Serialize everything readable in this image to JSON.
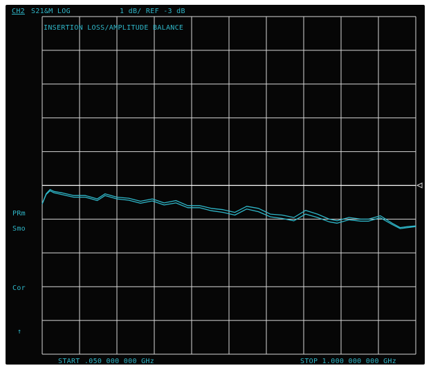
{
  "header": {
    "channel": "CH2",
    "measurement": "S21&M LOG",
    "scale_ref": "1 dB/ REF -3 dB"
  },
  "annotation": "INSERTION LOSS/AMPLITUDE BALANCE",
  "side_labels": {
    "prm": "PRm",
    "smo": "Smo",
    "cor": "Cor",
    "arrow": "↑"
  },
  "footer": {
    "start": "START .050 000 000 GHz",
    "stop": "STOP 1.000 000 000 GHz"
  },
  "colors": {
    "background": "#060606",
    "grid": "#d8d8d8",
    "trace": "#2fb7c9",
    "text": "#2fb7c9",
    "reference_line": "#ffffff"
  },
  "chart_data": {
    "type": "line",
    "title": "INSERTION LOSS/AMPLITUDE BALANCE",
    "x_unit": "GHz",
    "xlim": [
      0.05,
      1.0
    ],
    "ylim": [
      -8,
      2
    ],
    "y_per_division": 1,
    "reference_value": -3,
    "reference_marker": "right-triangle",
    "grid": true,
    "x_divisions": 10,
    "y_divisions": 10,
    "series": [
      {
        "x": [
          0.05,
          0.06,
          0.07,
          0.08,
          0.1,
          0.13,
          0.16,
          0.19,
          0.21,
          0.24,
          0.27,
          0.3,
          0.33,
          0.36,
          0.39,
          0.42,
          0.45,
          0.48,
          0.51,
          0.54,
          0.57,
          0.6,
          0.63,
          0.66,
          0.69,
          0.72,
          0.75,
          0.78,
          0.8,
          0.83,
          0.86,
          0.88,
          0.91,
          0.94,
          0.96,
          0.98,
          1.0
        ],
        "y": [
          -3.55,
          -3.25,
          -3.12,
          -3.18,
          -3.22,
          -3.3,
          -3.3,
          -3.4,
          -3.25,
          -3.35,
          -3.38,
          -3.47,
          -3.4,
          -3.52,
          -3.45,
          -3.6,
          -3.6,
          -3.68,
          -3.72,
          -3.8,
          -3.62,
          -3.68,
          -3.85,
          -3.88,
          -3.95,
          -3.74,
          -3.85,
          -4.0,
          -4.05,
          -3.95,
          -4.0,
          -4.0,
          -3.9,
          -4.12,
          -4.25,
          -4.22,
          -4.2
        ]
      },
      {
        "x": [
          0.05,
          0.06,
          0.07,
          0.08,
          0.1,
          0.13,
          0.16,
          0.19,
          0.21,
          0.24,
          0.27,
          0.3,
          0.33,
          0.36,
          0.39,
          0.42,
          0.45,
          0.48,
          0.51,
          0.54,
          0.57,
          0.6,
          0.63,
          0.66,
          0.69,
          0.72,
          0.75,
          0.78,
          0.8,
          0.83,
          0.86,
          0.88,
          0.91,
          0.94,
          0.96,
          0.98,
          1.0
        ],
        "y": [
          -3.55,
          -3.27,
          -3.16,
          -3.22,
          -3.27,
          -3.35,
          -3.35,
          -3.45,
          -3.3,
          -3.4,
          -3.44,
          -3.53,
          -3.46,
          -3.58,
          -3.52,
          -3.66,
          -3.66,
          -3.75,
          -3.8,
          -3.88,
          -3.7,
          -3.78,
          -3.93,
          -3.98,
          -4.05,
          -3.85,
          -3.95,
          -4.08,
          -4.12,
          -4.02,
          -4.06,
          -4.06,
          -3.96,
          -4.16,
          -4.28,
          -4.25,
          -4.22
        ]
      }
    ]
  }
}
